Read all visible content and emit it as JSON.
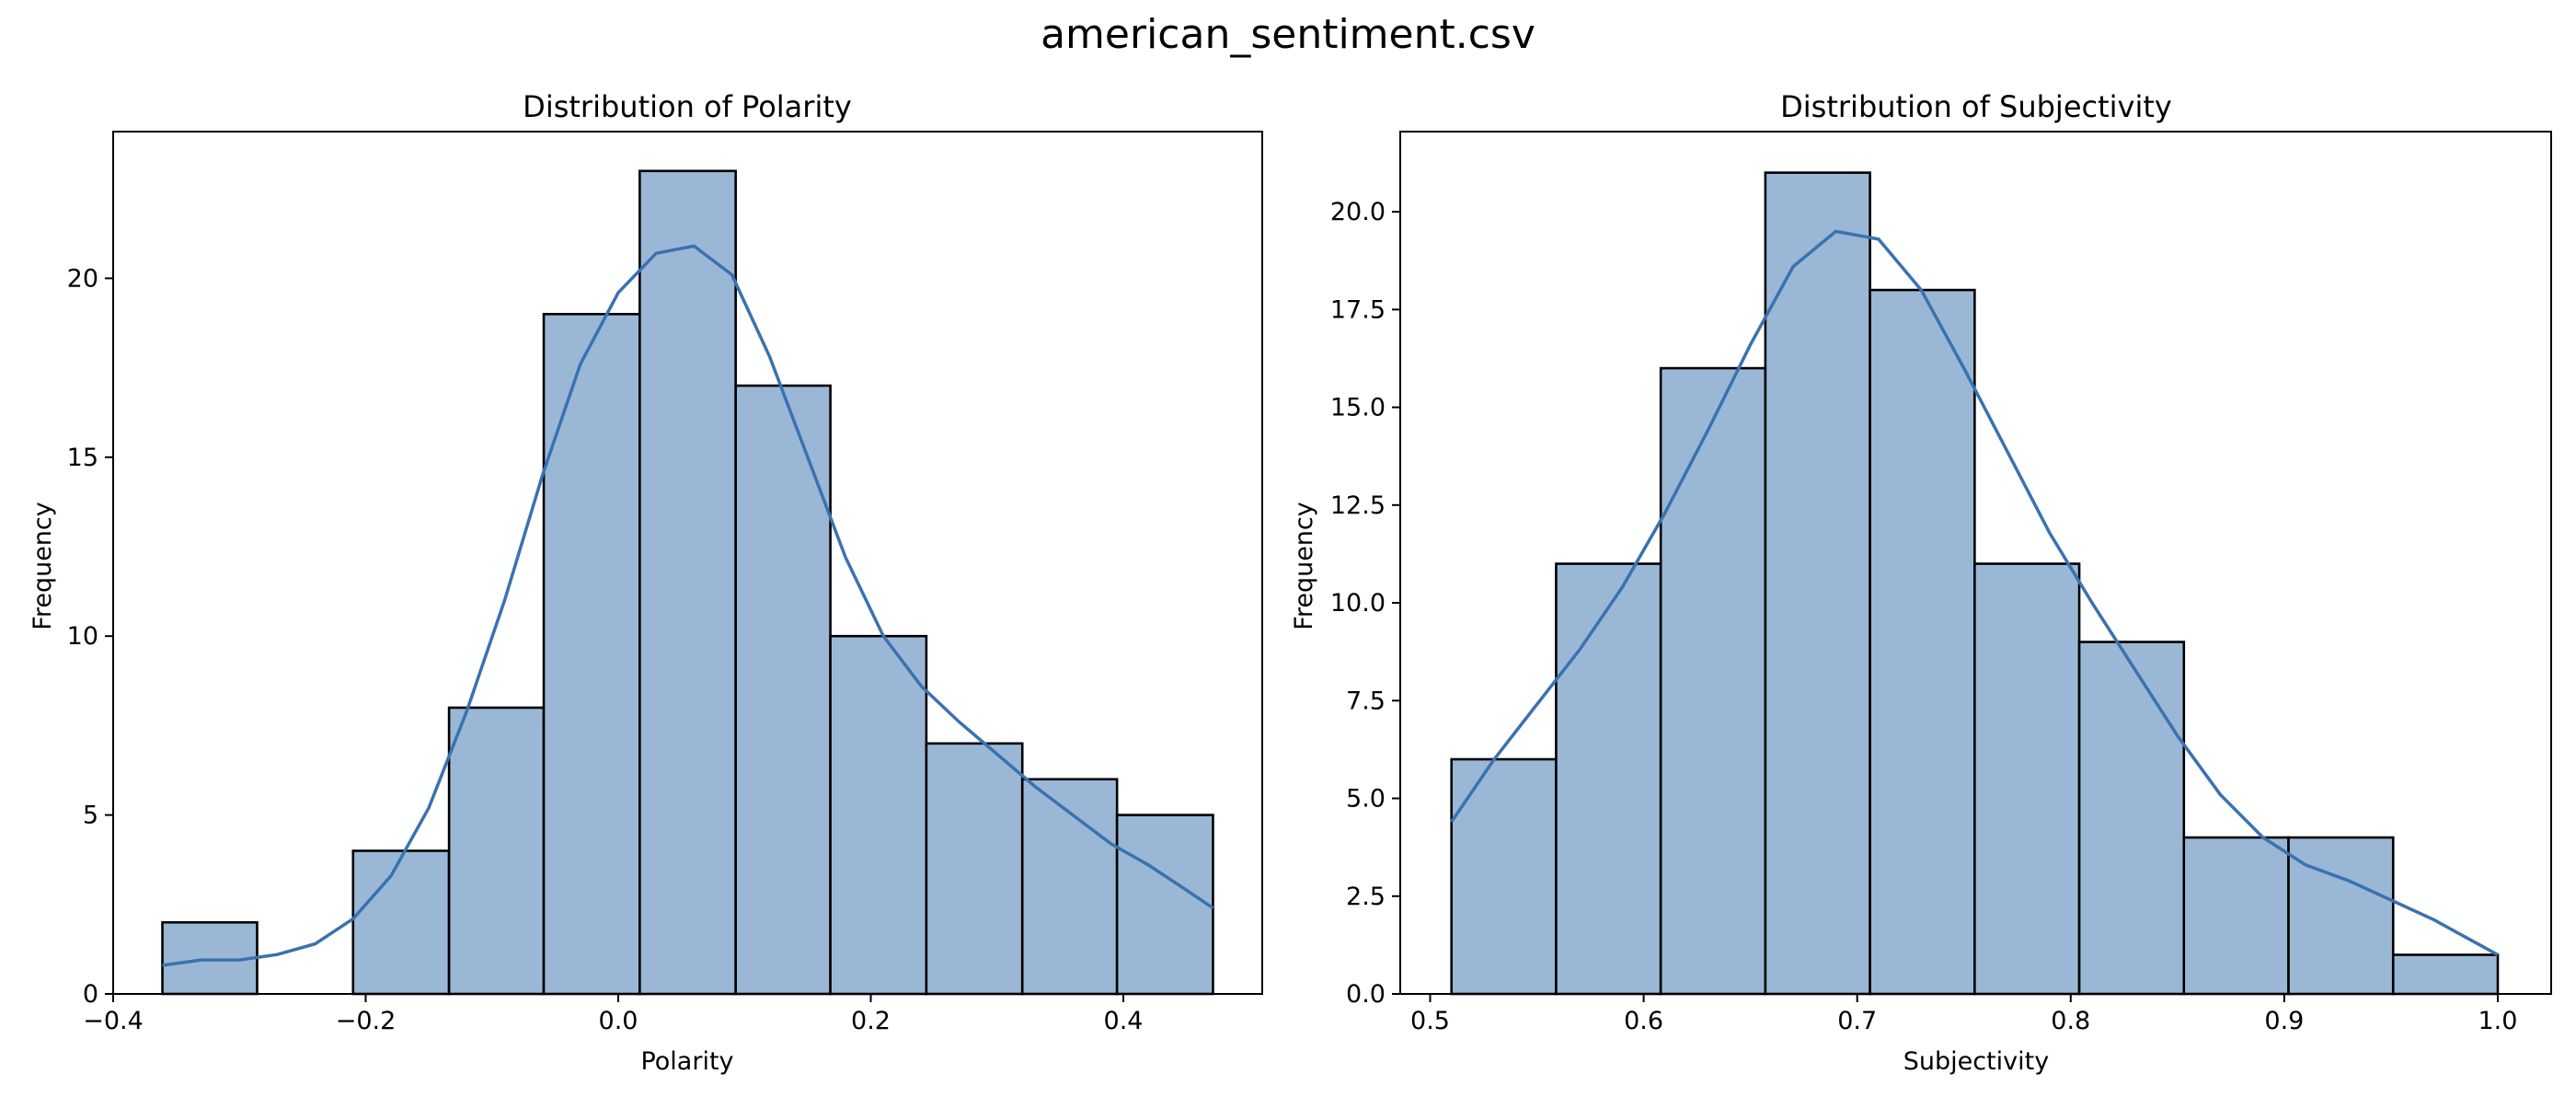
{
  "figure": {
    "suptitle": "american_sentiment.csv"
  },
  "colors": {
    "bar_fill": "#9ab8d6",
    "bar_edge": "#000000",
    "kde_line": "#3a72b0"
  },
  "chart_data": [
    {
      "type": "bar",
      "subtype": "histogram-with-kde",
      "title": "Distribution of Polarity",
      "xlabel": "Polarity",
      "ylabel": "Frequency",
      "xlim": [
        -0.4,
        0.51
      ],
      "ylim": [
        0,
        24.1
      ],
      "xticks": [
        -0.4,
        -0.2,
        0.0,
        0.2,
        0.4
      ],
      "xtick_labels": [
        "−0.4",
        "−0.2",
        "0.0",
        "0.2",
        "0.4"
      ],
      "yticks": [
        0,
        5,
        10,
        15,
        20
      ],
      "ytick_labels": [
        "0",
        "5",
        "10",
        "15",
        "20"
      ],
      "bin_edges": [
        -0.361,
        -0.286,
        -0.21,
        -0.134,
        -0.059,
        0.017,
        0.093,
        0.168,
        0.244,
        0.32,
        0.395,
        0.471
      ],
      "values": [
        2,
        0,
        4,
        8,
        19,
        23,
        17,
        10,
        7,
        6,
        5
      ],
      "kde": {
        "x": [
          -0.361,
          -0.33,
          -0.3,
          -0.27,
          -0.24,
          -0.21,
          -0.18,
          -0.15,
          -0.12,
          -0.09,
          -0.06,
          -0.03,
          0.0,
          0.03,
          0.06,
          0.09,
          0.12,
          0.15,
          0.18,
          0.21,
          0.24,
          0.27,
          0.3,
          0.33,
          0.36,
          0.39,
          0.42,
          0.45,
          0.471
        ],
        "y": [
          0.8,
          0.95,
          0.95,
          1.1,
          1.4,
          2.1,
          3.3,
          5.2,
          7.9,
          11.0,
          14.5,
          17.6,
          19.6,
          20.7,
          20.9,
          20.1,
          17.8,
          15.0,
          12.2,
          10.0,
          8.6,
          7.6,
          6.7,
          5.8,
          5.0,
          4.2,
          3.6,
          2.9,
          2.4
        ]
      }
    },
    {
      "type": "bar",
      "subtype": "histogram-with-kde",
      "title": "Distribution of Subjectivity",
      "xlabel": "Subjectivity",
      "ylabel": "Frequency",
      "xlim": [
        0.486,
        1.025
      ],
      "ylim": [
        0,
        22.05
      ],
      "xticks": [
        0.5,
        0.6,
        0.7,
        0.8,
        0.9,
        1.0
      ],
      "xtick_labels": [
        "0.5",
        "0.6",
        "0.7",
        "0.8",
        "0.9",
        "1.0"
      ],
      "yticks": [
        0,
        2.5,
        5,
        7.5,
        10,
        12.5,
        15,
        17.5,
        20
      ],
      "ytick_labels": [
        "0.0",
        "2.5",
        "5.0",
        "7.5",
        "10.0",
        "12.5",
        "15.0",
        "17.5",
        "20.0"
      ],
      "bin_edges": [
        0.51,
        0.559,
        0.608,
        0.657,
        0.706,
        0.755,
        0.804,
        0.853,
        0.902,
        0.951,
        1.0
      ],
      "values": [
        6,
        11,
        16,
        21,
        18,
        11,
        9,
        4,
        4,
        1
      ],
      "kde": {
        "x": [
          0.51,
          0.53,
          0.55,
          0.57,
          0.59,
          0.61,
          0.63,
          0.65,
          0.67,
          0.69,
          0.71,
          0.73,
          0.75,
          0.77,
          0.79,
          0.81,
          0.83,
          0.85,
          0.87,
          0.89,
          0.91,
          0.93,
          0.95,
          0.97,
          0.99,
          1.0
        ],
        "y": [
          4.4,
          6.0,
          7.4,
          8.8,
          10.4,
          12.3,
          14.4,
          16.6,
          18.6,
          19.5,
          19.3,
          18.0,
          16.0,
          13.9,
          11.8,
          10.0,
          8.3,
          6.6,
          5.1,
          4.0,
          3.3,
          2.9,
          2.4,
          1.9,
          1.3,
          1.0
        ]
      }
    }
  ]
}
